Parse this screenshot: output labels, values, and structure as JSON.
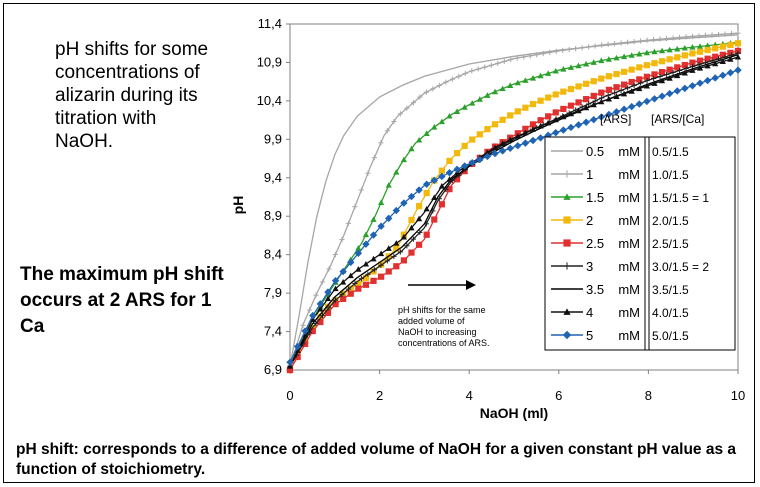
{
  "side_text": "pH shifts for some concentrations of alizarin during its titration with NaOH.",
  "side_bold": "The maximum pH shift occurs at 2 ARS for 1 Ca",
  "bottom_note": "pH shift: corresponds to a difference of added volume of NaOH for a given constant pH value as a function of stoichiometry.",
  "chart_data": {
    "type": "line",
    "xlabel": "NaOH (ml)",
    "ylabel": "pH",
    "xlim": [
      0,
      10
    ],
    "ylim": [
      6.9,
      11.4
    ],
    "x_ticks": [
      "0",
      "2",
      "4",
      "6",
      "8",
      "10"
    ],
    "y_ticks": [
      "6,9",
      "7,4",
      "7,9",
      "8,4",
      "8,9",
      "9,4",
      "9,9",
      "10,4",
      "10,9",
      "11,4"
    ],
    "legend_header_1": "[ARS]",
    "legend_header_2": "[ARS/[Ca]",
    "legend_placement": "right",
    "annotation": [
      "pH shifts for the same",
      "added volume of",
      "NaOH to increasing",
      "concentrations of ARS."
    ],
    "series": [
      {
        "name": "0.5 mM",
        "ratio": "0.5/1.5",
        "color": "#a6a6a6",
        "marker": "none",
        "x": [
          0,
          0.2,
          0.4,
          0.6,
          0.8,
          1.0,
          1.2,
          1.5,
          2,
          2.5,
          3,
          4,
          5,
          6,
          7,
          8,
          9,
          10
        ],
        "y": [
          6.95,
          7.6,
          8.3,
          8.9,
          9.35,
          9.7,
          9.95,
          10.2,
          10.45,
          10.6,
          10.72,
          10.88,
          10.98,
          11.06,
          11.12,
          11.18,
          11.22,
          11.26
        ]
      },
      {
        "name": "1 mM",
        "ratio": "1.0/1.5",
        "color": "#a6a6a6",
        "marker": "plus",
        "x": [
          0,
          0.3,
          0.6,
          0.9,
          1.2,
          1.5,
          1.8,
          2.1,
          2.4,
          3,
          3.5,
          4,
          5,
          6,
          7,
          8,
          9,
          10
        ],
        "y": [
          6.95,
          7.5,
          7.9,
          8.25,
          8.65,
          9.1,
          9.55,
          9.95,
          10.2,
          10.5,
          10.65,
          10.78,
          10.95,
          11.05,
          11.13,
          11.19,
          11.24,
          11.28
        ]
      },
      {
        "name": "1.5 mM",
        "ratio": "1.5/1.5 = 1",
        "color": "#2ca02c",
        "marker": "triangle",
        "x": [
          0,
          0.4,
          0.8,
          1.2,
          1.6,
          1.9,
          2.2,
          2.5,
          2.8,
          3.2,
          3.6,
          4,
          4.5,
          5,
          6,
          7,
          8,
          9,
          10
        ],
        "y": [
          6.95,
          7.45,
          7.85,
          8.2,
          8.55,
          8.9,
          9.3,
          9.6,
          9.85,
          10.05,
          10.22,
          10.35,
          10.5,
          10.62,
          10.8,
          10.93,
          11.03,
          11.1,
          11.16
        ]
      },
      {
        "name": "2 mM",
        "ratio": "2.0/1.5",
        "color": "#f2b90c",
        "marker": "square",
        "x": [
          0,
          0.4,
          0.8,
          1.2,
          1.6,
          2,
          2.4,
          2.8,
          3.2,
          3.6,
          4,
          4.5,
          5,
          5.5,
          6,
          7,
          8,
          9,
          10
        ],
        "y": [
          6.9,
          7.35,
          7.7,
          7.9,
          8.05,
          8.25,
          8.5,
          8.95,
          9.35,
          9.65,
          9.87,
          10.07,
          10.24,
          10.38,
          10.5,
          10.7,
          10.87,
          11.02,
          11.15
        ]
      },
      {
        "name": "2.5 mM",
        "ratio": "2.5/1.5",
        "color": "#e03030",
        "marker": "square",
        "x": [
          0,
          0.5,
          1,
          1.5,
          2,
          2.5,
          3,
          3.3,
          3.6,
          4,
          4.5,
          5,
          5.5,
          6,
          7,
          8,
          9,
          10
        ],
        "y": [
          6.9,
          7.4,
          7.75,
          7.95,
          8.1,
          8.3,
          8.6,
          8.95,
          9.3,
          9.55,
          9.78,
          9.95,
          10.12,
          10.27,
          10.52,
          10.72,
          10.9,
          11.05
        ]
      },
      {
        "name": "3 mM",
        "ratio": "3.0/1.5 = 2",
        "color": "#222222",
        "marker": "plus",
        "x": [
          0,
          0.5,
          1,
          1.5,
          2,
          2.5,
          3,
          3.3,
          3.6,
          4,
          4.5,
          5,
          5.5,
          6,
          7,
          8,
          9,
          10
        ],
        "y": [
          6.95,
          7.45,
          7.8,
          8.05,
          8.25,
          8.45,
          8.75,
          9.1,
          9.35,
          9.55,
          9.75,
          9.9,
          10.05,
          10.18,
          10.45,
          10.67,
          10.85,
          11.02
        ]
      },
      {
        "name": "3.5 mM",
        "ratio": "3.5/1.5",
        "color": "#000000",
        "marker": "none",
        "x": [
          0,
          0.5,
          1,
          1.5,
          2,
          2.5,
          3,
          3.3,
          3.6,
          4,
          4.5,
          5,
          5.5,
          6,
          7,
          8,
          9,
          10
        ],
        "y": [
          6.95,
          7.5,
          7.85,
          8.1,
          8.3,
          8.5,
          8.8,
          9.15,
          9.38,
          9.55,
          9.72,
          9.88,
          10.02,
          10.15,
          10.4,
          10.62,
          10.82,
          11.0
        ]
      },
      {
        "name": "4 mM",
        "ratio": "4.0/1.5",
        "color": "#111111",
        "marker": "triangle",
        "x": [
          0,
          0.5,
          1,
          1.5,
          2,
          2.5,
          3,
          3.4,
          3.8,
          4.2,
          4.6,
          5,
          5.5,
          6,
          7,
          8,
          9,
          10
        ],
        "y": [
          6.95,
          7.55,
          7.95,
          8.2,
          8.4,
          8.6,
          8.95,
          9.3,
          9.5,
          9.65,
          9.8,
          9.92,
          10.05,
          10.17,
          10.4,
          10.6,
          10.8,
          10.97
        ]
      },
      {
        "name": "5 mM",
        "ratio": "5.0/1.5",
        "color": "#1f64b4",
        "marker": "diamond",
        "x": [
          0,
          0.5,
          1,
          1.5,
          2,
          2.5,
          3,
          3.5,
          4,
          4.5,
          5,
          5.5,
          6,
          7,
          8,
          9,
          10
        ],
        "y": [
          7.0,
          7.6,
          8.05,
          8.4,
          8.75,
          9.05,
          9.3,
          9.45,
          9.58,
          9.7,
          9.8,
          9.9,
          10.0,
          10.2,
          10.4,
          10.6,
          10.8
        ]
      }
    ]
  }
}
